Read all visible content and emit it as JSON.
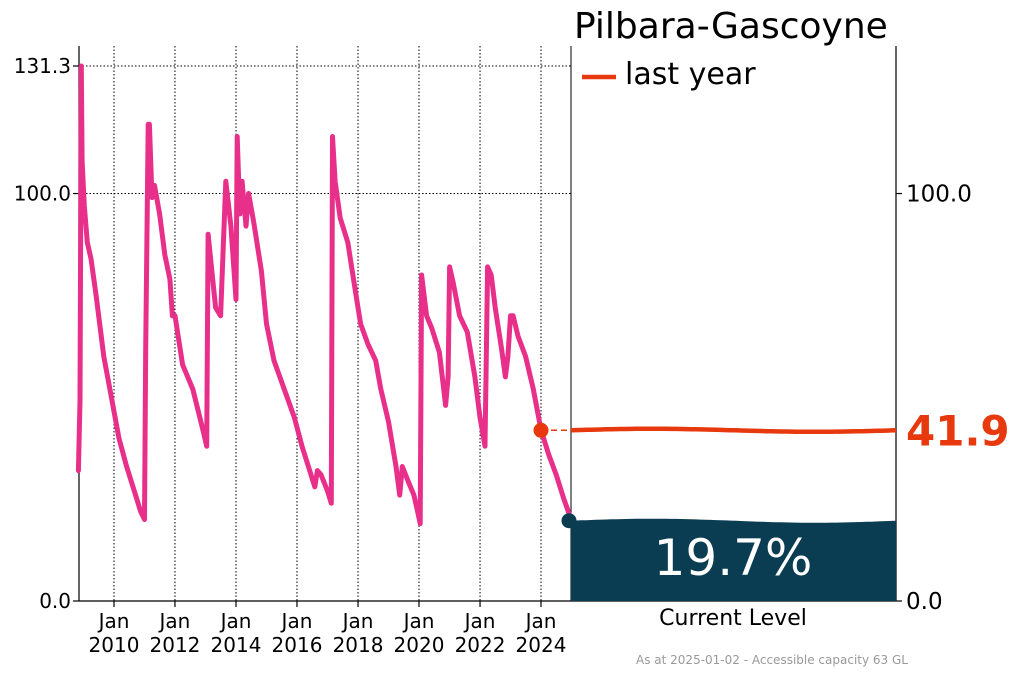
{
  "chart_data": {
    "type": "line",
    "title": "Pilbara-Gascoyne",
    "ylim": [
      0,
      131.3
    ],
    "y_ticks_left": [
      "0.0",
      "100.0",
      "131.3"
    ],
    "y_ticks_right": [
      "0.0",
      "100.0"
    ],
    "x_ticks": [
      {
        "month": "Jan",
        "year": "2010"
      },
      {
        "month": "Jan",
        "year": "2012"
      },
      {
        "month": "Jan",
        "year": "2014"
      },
      {
        "month": "Jan",
        "year": "2016"
      },
      {
        "month": "Jan",
        "year": "2018"
      },
      {
        "month": "Jan",
        "year": "2020"
      },
      {
        "month": "Jan",
        "year": "2022"
      },
      {
        "month": "Jan",
        "year": "2024"
      }
    ],
    "grid": true,
    "series": [
      {
        "color": "#e8308a",
        "points": [
          [
            "2008-11-01",
            32
          ],
          [
            "2008-11-20",
            49
          ],
          [
            "2008-12-05",
            131.3
          ],
          [
            "2008-12-15",
            108
          ],
          [
            "2009-01-10",
            97
          ],
          [
            "2009-02-15",
            88
          ],
          [
            "2009-04-01",
            84
          ],
          [
            "2009-06-01",
            75
          ],
          [
            "2009-09-01",
            60
          ],
          [
            "2009-12-01",
            50
          ],
          [
            "2010-03-01",
            40
          ],
          [
            "2010-06-01",
            33
          ],
          [
            "2010-09-01",
            27
          ],
          [
            "2010-11-15",
            22
          ],
          [
            "2011-01-01",
            20
          ],
          [
            "2011-01-15",
            62
          ],
          [
            "2011-02-15",
            117
          ],
          [
            "2011-03-01",
            117
          ],
          [
            "2011-04-01",
            99
          ],
          [
            "2011-05-01",
            102
          ],
          [
            "2011-07-01",
            95
          ],
          [
            "2011-09-01",
            85
          ],
          [
            "2011-11-01",
            79
          ],
          [
            "2011-12-01",
            70
          ],
          [
            "2012-01-01",
            70
          ],
          [
            "2012-04-01",
            58
          ],
          [
            "2012-08-01",
            52
          ],
          [
            "2012-12-01",
            42
          ],
          [
            "2013-01-15",
            38
          ],
          [
            "2013-02-01",
            90
          ],
          [
            "2013-05-01",
            72
          ],
          [
            "2013-07-01",
            70
          ],
          [
            "2013-09-01",
            103
          ],
          [
            "2013-11-01",
            92
          ],
          [
            "2014-01-01",
            74
          ],
          [
            "2014-01-15",
            114
          ],
          [
            "2014-02-15",
            95
          ],
          [
            "2014-03-15",
            103
          ],
          [
            "2014-05-01",
            92
          ],
          [
            "2014-06-01",
            100
          ],
          [
            "2014-08-01",
            93
          ],
          [
            "2014-11-01",
            81
          ],
          [
            "2015-01-01",
            68
          ],
          [
            "2015-04-01",
            59
          ],
          [
            "2015-08-01",
            52
          ],
          [
            "2015-12-01",
            45
          ],
          [
            "2016-03-01",
            38
          ],
          [
            "2016-06-01",
            32
          ],
          [
            "2016-08-01",
            28
          ],
          [
            "2016-09-01",
            32
          ],
          [
            "2016-10-15",
            31
          ],
          [
            "2017-01-01",
            27
          ],
          [
            "2017-02-15",
            24
          ],
          [
            "2017-03-01",
            114
          ],
          [
            "2017-04-01",
            103
          ],
          [
            "2017-06-01",
            94
          ],
          [
            "2017-09-01",
            88
          ],
          [
            "2017-12-01",
            76
          ],
          [
            "2018-02-01",
            68
          ],
          [
            "2018-05-01",
            63
          ],
          [
            "2018-08-01",
            59
          ],
          [
            "2018-10-01",
            52
          ],
          [
            "2019-01-01",
            44
          ],
          [
            "2019-04-01",
            33
          ],
          [
            "2019-05-15",
            26
          ],
          [
            "2019-06-15",
            33
          ],
          [
            "2019-09-01",
            29
          ],
          [
            "2019-11-01",
            26
          ],
          [
            "2019-12-15",
            22
          ],
          [
            "2020-01-15",
            19
          ],
          [
            "2020-02-01",
            80
          ],
          [
            "2020-04-01",
            70
          ],
          [
            "2020-06-01",
            67
          ],
          [
            "2020-09-01",
            61
          ],
          [
            "2020-11-15",
            48
          ],
          [
            "2020-12-15",
            55
          ],
          [
            "2021-01-01",
            82
          ],
          [
            "2021-02-15",
            78
          ],
          [
            "2021-05-01",
            70
          ],
          [
            "2021-08-01",
            66
          ],
          [
            "2021-11-01",
            55
          ],
          [
            "2022-01-01",
            45
          ],
          [
            "2022-03-01",
            38
          ],
          [
            "2022-04-01",
            82
          ],
          [
            "2022-05-15",
            80
          ],
          [
            "2022-07-01",
            72
          ],
          [
            "2022-09-15",
            62
          ],
          [
            "2022-11-01",
            55
          ],
          [
            "2022-12-01",
            60
          ],
          [
            "2023-01-01",
            70
          ],
          [
            "2023-02-01",
            70
          ],
          [
            "2023-04-01",
            65
          ],
          [
            "2023-07-01",
            60
          ],
          [
            "2023-10-01",
            52
          ],
          [
            "2024-01-01",
            42
          ],
          [
            "2024-04-01",
            36
          ],
          [
            "2024-07-01",
            31
          ],
          [
            "2024-10-01",
            25
          ],
          [
            "2025-01-02",
            19.7
          ]
        ]
      }
    ],
    "legend": {
      "label": "last year",
      "color": "#e8380d",
      "position": "top-left of right panel"
    },
    "last_year_value": "41.9",
    "last_year_color": "#e8380d",
    "current_level_value": 19.7,
    "current_level_label": "19.7%",
    "current_level_caption": "Current Level",
    "current_level_color": "#0b3d52",
    "footer": "As at 2025-01-02 - Accessible capacity 63 GL"
  }
}
